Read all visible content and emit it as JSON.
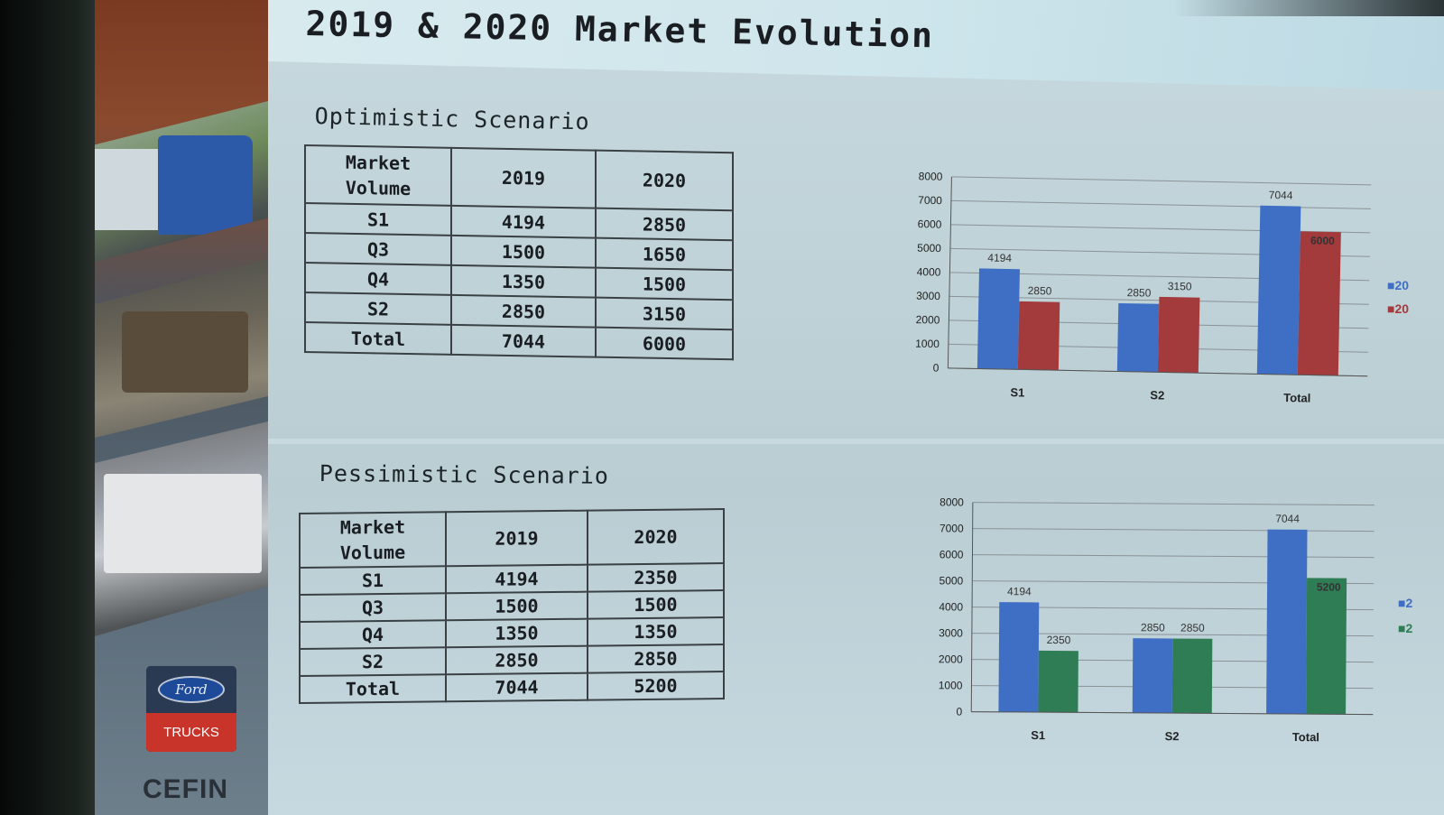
{
  "title": "2019 & 2020 Market Evolution",
  "sidebar": {
    "brand": "Ford",
    "brand_sub": "TRUCKS",
    "dealer": "CEFIN"
  },
  "optimistic": {
    "title": "Optimistic Scenario",
    "header": [
      "Market Volume",
      "2019",
      "2020"
    ],
    "header_lines": [
      "Market",
      "Volume"
    ],
    "rows": [
      {
        "label": "S1",
        "v2019": "4194",
        "v2020": "2850"
      },
      {
        "label": "Q3",
        "v2019": "1500",
        "v2020": "1650"
      },
      {
        "label": "Q4",
        "v2019": "1350",
        "v2020": "1500"
      },
      {
        "label": "S2",
        "v2019": "2850",
        "v2020": "3150"
      },
      {
        "label": "Total",
        "v2019": "7044",
        "v2020": "6000"
      }
    ],
    "legend": [
      "20",
      "20"
    ]
  },
  "pessimistic": {
    "title": "Pessimistic Scenario",
    "header": [
      "Market Volume",
      "2019",
      "2020"
    ],
    "header_lines": [
      "Market",
      "Volume"
    ],
    "rows": [
      {
        "label": "S1",
        "v2019": "4194",
        "v2020": "2350"
      },
      {
        "label": "Q3",
        "v2019": "1500",
        "v2020": "1500"
      },
      {
        "label": "Q4",
        "v2019": "1350",
        "v2020": "1350"
      },
      {
        "label": "S2",
        "v2019": "2850",
        "v2020": "2850"
      },
      {
        "label": "Total",
        "v2019": "7044",
        "v2020": "5200"
      }
    ],
    "legend": [
      "2",
      "2"
    ]
  },
  "chart_data": [
    {
      "type": "bar",
      "categories": [
        "S1",
        "S2",
        "Total"
      ],
      "series": [
        {
          "values": [
            4194,
            2850,
            7044
          ],
          "color": "#3f6fc4"
        },
        {
          "values": [
            2850,
            3150,
            6000
          ],
          "color": "#a33a3c"
        }
      ],
      "ylim": [
        0,
        8000
      ],
      "yticks": [
        0,
        1000,
        2000,
        3000,
        4000,
        5000,
        6000,
        7000,
        8000
      ],
      "grid": true,
      "legend": "right",
      "highlight_label": {
        "series": 1,
        "category": 2,
        "color": "#c0392b"
      }
    },
    {
      "type": "bar",
      "categories": [
        "S1",
        "S2",
        "Total"
      ],
      "series": [
        {
          "values": [
            4194,
            2850,
            7044
          ],
          "color": "#3f6fc4"
        },
        {
          "values": [
            2350,
            2850,
            5200
          ],
          "color": "#2e7d55"
        }
      ],
      "ylim": [
        0,
        8000
      ],
      "yticks": [
        0,
        1000,
        2000,
        3000,
        4000,
        5000,
        6000,
        7000,
        8000
      ],
      "grid": true,
      "legend": "right",
      "highlight_label": {
        "series": 1,
        "category": 2,
        "color": "#c0392b"
      }
    }
  ],
  "colors": {
    "slide_bg": "#c7d9de",
    "table_border": "#3a4044",
    "text": "#1a1e22"
  }
}
